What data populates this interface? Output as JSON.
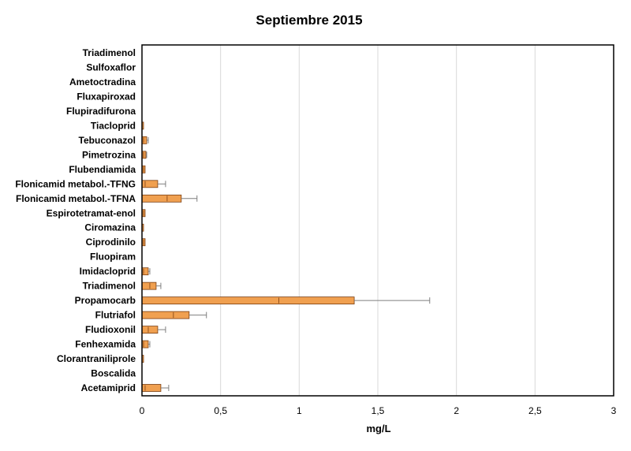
{
  "chart_data": {
    "type": "bar",
    "orientation": "horizontal",
    "title": "Septiembre 2015",
    "xlabel": "mg/L",
    "ylabel": "",
    "xlim": [
      0,
      3
    ],
    "xticks": [
      "0",
      "0,5",
      "1",
      "1,5",
      "2",
      "2,5",
      "3"
    ],
    "xtick_values": [
      0,
      0.5,
      1,
      1.5,
      2,
      2.5,
      3
    ],
    "grid": "vertical",
    "bar_color": "#f0a050",
    "bar_border_color": "#7a3d10",
    "errorbar_color": "#7f7f7f",
    "categories": [
      "Triadimenol",
      "Sulfoxaflor",
      "Ametoctradina",
      "Fluxapiroxad",
      "Flupiradifurona",
      "Tiacloprid",
      "Tebuconazol",
      "Pimetrozina",
      "Flubendiamida",
      "Flonicamid metabol.-TFNG",
      "Flonicamid metabol.-TFNA",
      "Espirotetramat-enol",
      "Ciromazina",
      "Ciprodinilo",
      "Fluopiram",
      "Imidacloprid",
      "Triadimenol",
      "Propamocarb",
      "Flutriafol",
      "Fludioxonil",
      "Fenhexamida",
      "Clorantraniliprole",
      "Boscalida",
      "Acetamiprid"
    ],
    "values": [
      0,
      0,
      0,
      0,
      0,
      0.005,
      0.03,
      0.025,
      0.02,
      0.1,
      0.25,
      0.02,
      0.005,
      0.02,
      0,
      0.04,
      0.09,
      1.35,
      0.3,
      0.1,
      0.04,
      0.005,
      0,
      0.12
    ],
    "inner_values": [
      0,
      0,
      0,
      0,
      0,
      0,
      0.01,
      0.01,
      0.01,
      0.02,
      0.16,
      0.01,
      0,
      0.01,
      0,
      0.01,
      0.05,
      0.87,
      0.2,
      0.04,
      0.01,
      0,
      0,
      0.02
    ],
    "errors": [
      0,
      0,
      0,
      0,
      0,
      0,
      0.01,
      0.005,
      0,
      0.05,
      0.1,
      0,
      0,
      0,
      0,
      0.01,
      0.03,
      0.48,
      0.11,
      0.05,
      0.01,
      0,
      0,
      0.05
    ]
  }
}
